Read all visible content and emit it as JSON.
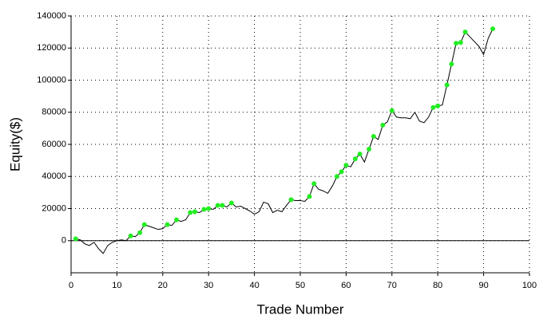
{
  "chart_data": {
    "type": "line",
    "xlabel": "Trade Number",
    "ylabel": "Equity($)",
    "xlim": [
      0,
      100
    ],
    "xticks": [
      0,
      10,
      20,
      30,
      40,
      50,
      60,
      70,
      80,
      90,
      100
    ],
    "ylim": [
      -20000,
      140000
    ],
    "yticks": [
      0,
      20000,
      40000,
      60000,
      80000,
      100000,
      120000,
      140000
    ],
    "grid": true,
    "series": [
      {
        "color": "#000000",
        "marker": false,
        "x": [
          1,
          2,
          3,
          4,
          5,
          6,
          7,
          8,
          9,
          10,
          11,
          12,
          13,
          14,
          15,
          16,
          17,
          18,
          19,
          20,
          21,
          22,
          23,
          24,
          25,
          26,
          27,
          28,
          29,
          30,
          31,
          32,
          33,
          34,
          35,
          36,
          37,
          38,
          39,
          40,
          41,
          42,
          43,
          44,
          45,
          46,
          47,
          48,
          49,
          50,
          51,
          52,
          53,
          54,
          55,
          56,
          57,
          58,
          59,
          60,
          61,
          62,
          63,
          64,
          65,
          66,
          67,
          68,
          69,
          70,
          71,
          72,
          73,
          74,
          75,
          76,
          77,
          78,
          79,
          80,
          81,
          82,
          83,
          84,
          85,
          86,
          87,
          88,
          89,
          90,
          91,
          92
        ],
        "values": [
          1200,
          500,
          -2000,
          -3000,
          -1000,
          -5000,
          -8000,
          -3000,
          -1000,
          0,
          500,
          0,
          3000,
          2500,
          5000,
          10000,
          9000,
          8000,
          7000,
          7500,
          10000,
          9500,
          13000,
          12000,
          13000,
          17500,
          18000,
          17500,
          19500,
          20000,
          19500,
          22000,
          22000,
          21000,
          23500,
          21000,
          21500,
          20000,
          18500,
          16500,
          18000,
          24000,
          23000,
          17500,
          19000,
          18000,
          22000,
          25500,
          25000,
          25000,
          24500,
          27500,
          35500,
          32000,
          31000,
          29500,
          34000,
          40000,
          43000,
          47000,
          46000,
          51000,
          54000,
          49000,
          57000,
          65000,
          63000,
          72000,
          74000,
          81000,
          77000,
          76500,
          76500,
          76000,
          80000,
          74500,
          73500,
          77000,
          83000,
          84000,
          84500,
          97000,
          110000,
          123000,
          123500,
          130000,
          127000,
          124000,
          121000,
          116000,
          126000,
          132000
        ]
      },
      {
        "color": "#22ee22",
        "marker": true,
        "x": [
          1,
          13,
          15,
          16,
          21,
          23,
          26,
          27,
          29,
          30,
          32,
          33,
          35,
          48,
          52,
          53,
          58,
          59,
          60,
          62,
          63,
          65,
          66,
          68,
          70,
          79,
          80,
          82,
          83,
          84,
          85,
          86,
          92
        ],
        "values": [
          1200,
          3000,
          5000,
          10000,
          10000,
          13000,
          17500,
          18000,
          19500,
          20000,
          22000,
          22000,
          23500,
          25500,
          27500,
          35500,
          40000,
          43000,
          47000,
          51000,
          54000,
          57000,
          65000,
          72000,
          81000,
          83000,
          84000,
          97000,
          110000,
          123000,
          123500,
          130000,
          132000
        ]
      }
    ]
  }
}
